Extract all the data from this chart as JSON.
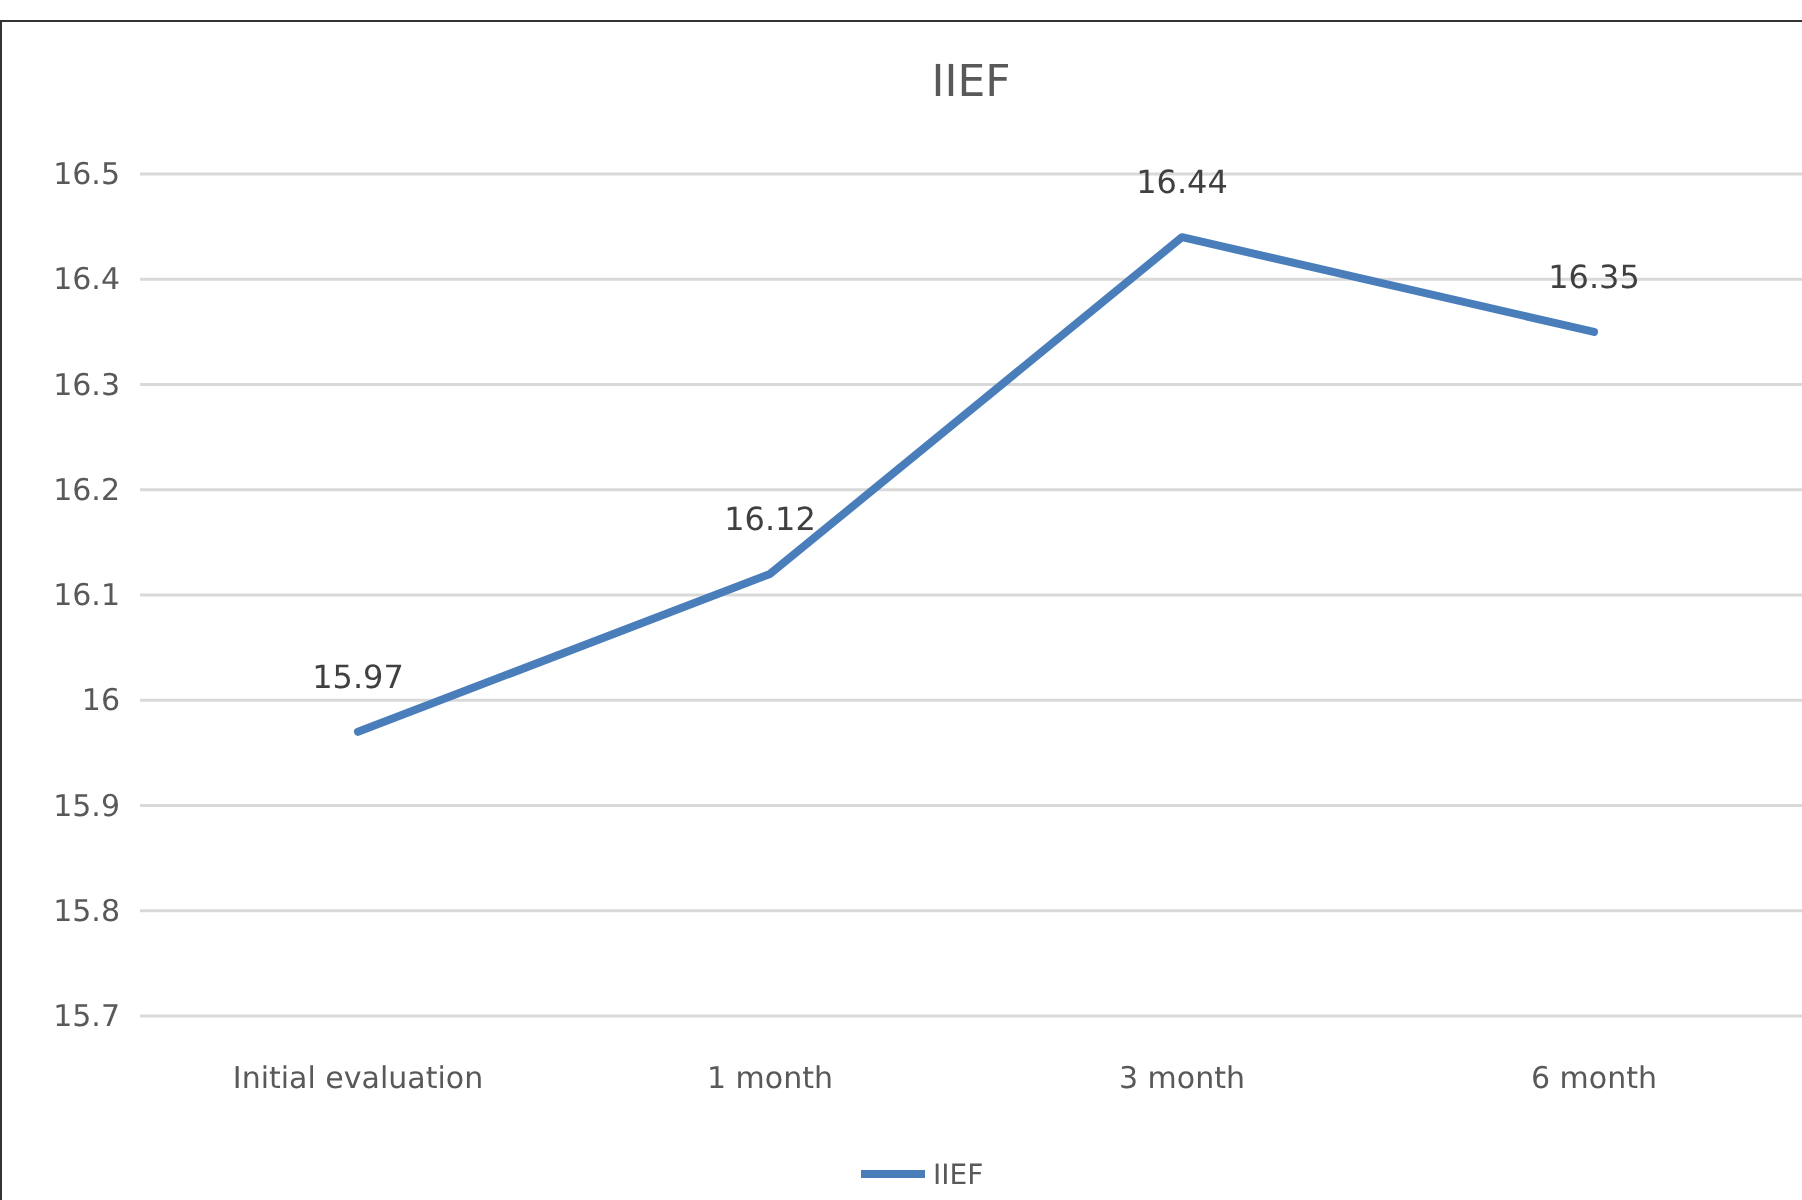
{
  "chart_data": {
    "type": "line",
    "title": "IIEF",
    "categories": [
      "Initial evaluation",
      "1 month",
      "3 month",
      "6 month"
    ],
    "series": [
      {
        "name": "IIEF",
        "color": "#4a7ebb",
        "values": [
          15.97,
          16.12,
          16.44,
          16.35
        ]
      }
    ],
    "ylim": [
      15.7,
      16.5
    ],
    "yticks": [
      15.7,
      15.8,
      15.9,
      16,
      16.1,
      16.2,
      16.3,
      16.4,
      16.5
    ],
    "grid": "y",
    "legend": "bottom",
    "data_labels": true,
    "marker": "none",
    "line_style": "solid"
  }
}
